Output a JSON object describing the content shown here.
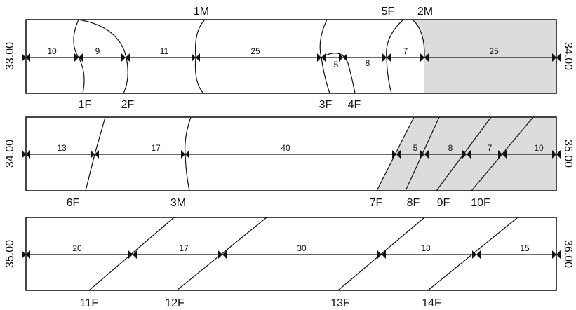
{
  "strips": [
    {
      "depth_left": "33.00",
      "depth_right": "34.00",
      "segments": [
        "10",
        "9",
        "11",
        "25",
        "5",
        "8",
        "7",
        "25"
      ],
      "labels_top": [
        "1M",
        "5F",
        "2M"
      ],
      "labels_bottom": [
        "1F",
        "2F",
        "3F",
        "4F"
      ],
      "shaded": true
    },
    {
      "depth_left": "34.00",
      "depth_right": "35.00",
      "segments": [
        "13",
        "17",
        "40",
        "5",
        "8",
        "7",
        "10"
      ],
      "labels_top": [],
      "labels_bottom": [
        "6F",
        "3M",
        "7F",
        "8F",
        "9F",
        "10F"
      ],
      "shaded": true
    },
    {
      "depth_left": "35.00",
      "depth_right": "36.00",
      "segments": [
        "20",
        "17",
        "30",
        "18",
        "15"
      ],
      "labels_top": [],
      "labels_bottom": [
        "11F",
        "12F",
        "13F",
        "14F"
      ],
      "shaded": false
    }
  ],
  "colors": {
    "shade": "#dcdcdc",
    "line": "#111111"
  }
}
